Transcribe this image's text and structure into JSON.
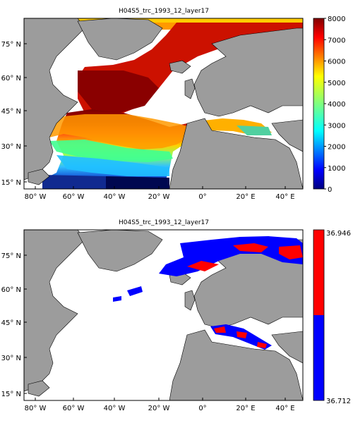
{
  "panels": [
    {
      "title": "H04S5_trc_1993_12_layer17",
      "colorbar": {
        "ticks": [
          "8000",
          "7000",
          "6000",
          "5000",
          "4000",
          "3000",
          "2000",
          "1000",
          "0"
        ],
        "max": 8000,
        "min": 0
      }
    },
    {
      "title": "H04S5_trc_1993_12_layer17",
      "colorbar": {
        "ticks": [
          "36.946",
          "36.712"
        ],
        "top_color": "#ff0000",
        "bottom_color": "#0000ff"
      }
    }
  ],
  "lat_labels": [
    "75",
    "60",
    "45",
    "30",
    "15"
  ],
  "lat_suffix": "N",
  "lon_labels": [
    "80",
    "60",
    "40",
    "20",
    "0",
    "20",
    "40"
  ],
  "lon_suffix": [
    "W",
    "W",
    "W",
    "W",
    "",
    "E",
    "E"
  ],
  "colors": {
    "land": "#9c9c9c",
    "ocean_nodata": "#ffffff",
    "coast": "#000000"
  }
}
